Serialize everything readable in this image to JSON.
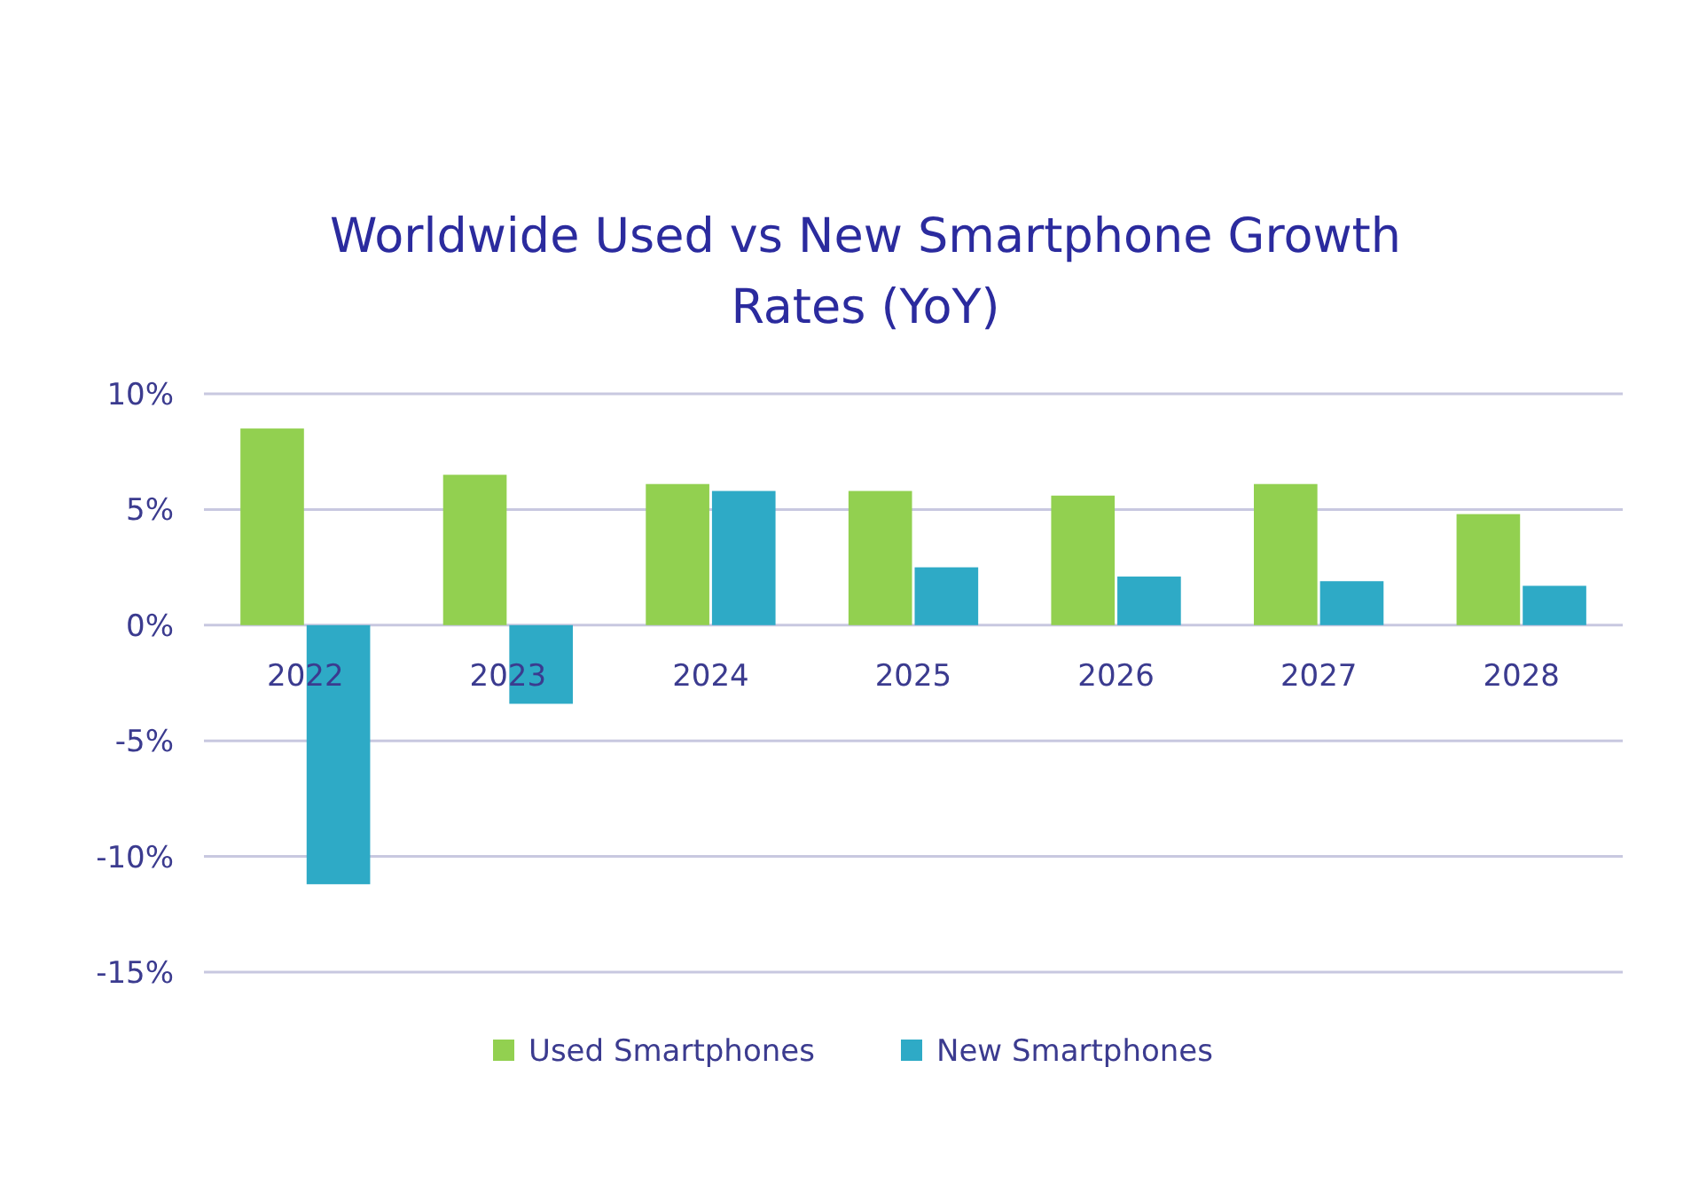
{
  "chart_data": {
    "type": "bar",
    "title": "Worldwide Used vs New Smartphone Growth Rates (YoY)",
    "categories": [
      "2022",
      "2023",
      "2024",
      "2025",
      "2026",
      "2027",
      "2028"
    ],
    "series": [
      {
        "name": "Used Smartphones",
        "color": "#92d050",
        "values": [
          8.5,
          6.5,
          6.1,
          5.8,
          5.6,
          6.1,
          4.8
        ]
      },
      {
        "name": "New Smartphones",
        "color": "#2eaac6",
        "values": [
          -11.2,
          -3.4,
          5.8,
          2.5,
          2.1,
          1.9,
          1.7
        ]
      }
    ],
    "ylim": [
      -15,
      10
    ],
    "yticks": [
      {
        "value": -15,
        "label": "-15%"
      },
      {
        "value": -10,
        "label": "-10%"
      },
      {
        "value": -5,
        "label": "-5%"
      },
      {
        "value": 0,
        "label": "0%"
      },
      {
        "value": 5,
        "label": "5%"
      },
      {
        "value": 10,
        "label": "10%"
      }
    ],
    "grid": "y",
    "legend": "bottom"
  }
}
